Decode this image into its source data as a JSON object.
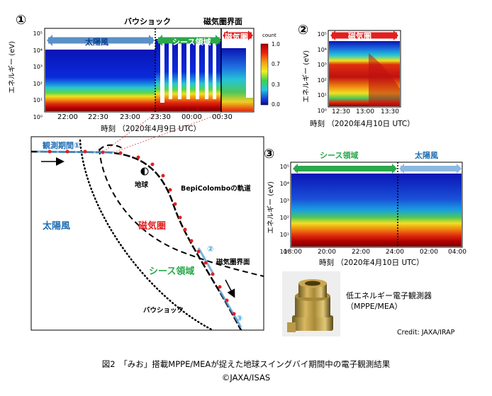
{
  "panel1": {
    "number": "①",
    "bowshock_label": "バウショック",
    "magnetopause_label": "磁気圏界面",
    "region_solar_wind": "太陽風",
    "region_sheath": "シース領域",
    "region_magnetosphere": "磁気圏",
    "ylabel": "エネルギー (eV)",
    "yticks": [
      "10⁵",
      "10⁴",
      "10³",
      "10²",
      "10¹",
      "10⁰"
    ],
    "xticks": [
      "22:00",
      "22:30",
      "23:00",
      "23:30",
      "00:00",
      "00:30"
    ],
    "xlabel": "時刻 （2020年4月9日 UTC）",
    "colorbar_title": "count",
    "colorbar_ticks": [
      "1.0",
      "0.7",
      "0.3",
      "0.0"
    ]
  },
  "panel2": {
    "number": "②",
    "region": "磁気圏",
    "ylabel": "エネルギー (eV)",
    "yticks": [
      "10⁵",
      "10⁴",
      "10³",
      "10²",
      "10¹",
      "10⁰"
    ],
    "xticks": [
      "12:30",
      "13:00",
      "13:30"
    ],
    "xlabel": "時刻 （2020年4月10日 UTC）"
  },
  "panel3": {
    "number": "③",
    "region_sheath": "シース領域",
    "region_solar_wind": "太陽風",
    "ylabel": "エネルギー (eV)",
    "yticks": [
      "10⁵",
      "10⁴",
      "10³",
      "10²",
      "10¹",
      "10⁰"
    ],
    "xticks": [
      "18:00",
      "20:00",
      "22:00",
      "24:00",
      "02:00",
      "04:00"
    ],
    "xlabel": "時刻 （2020年4月10日 UTC）"
  },
  "orbit": {
    "obs1": "観測期間①",
    "obs2": "②",
    "obs3": "③",
    "earth": "地球",
    "trajectory": "BepiColomboの軌道",
    "solar_wind": "太陽風",
    "magnetosphere": "磁気圏",
    "magnetopause": "磁気圏界面",
    "sheath": "シース領域",
    "bowshock": "バウショック"
  },
  "device": {
    "line1": "低エネルギー電子観測器",
    "line2": "（MPPE/MEA）",
    "credit": "Credit: JAXA/IRAP"
  },
  "caption": {
    "line1": "図2　「みお」搭載MPPE/MEAが捉えた地球スイングバイ期間中の電子観測結果",
    "line2": "©JAXA/ISAS"
  },
  "colors": {
    "solar_wind": "#1f6fb5",
    "sheath": "#2aa84a",
    "magnetosphere": "#e02020"
  }
}
